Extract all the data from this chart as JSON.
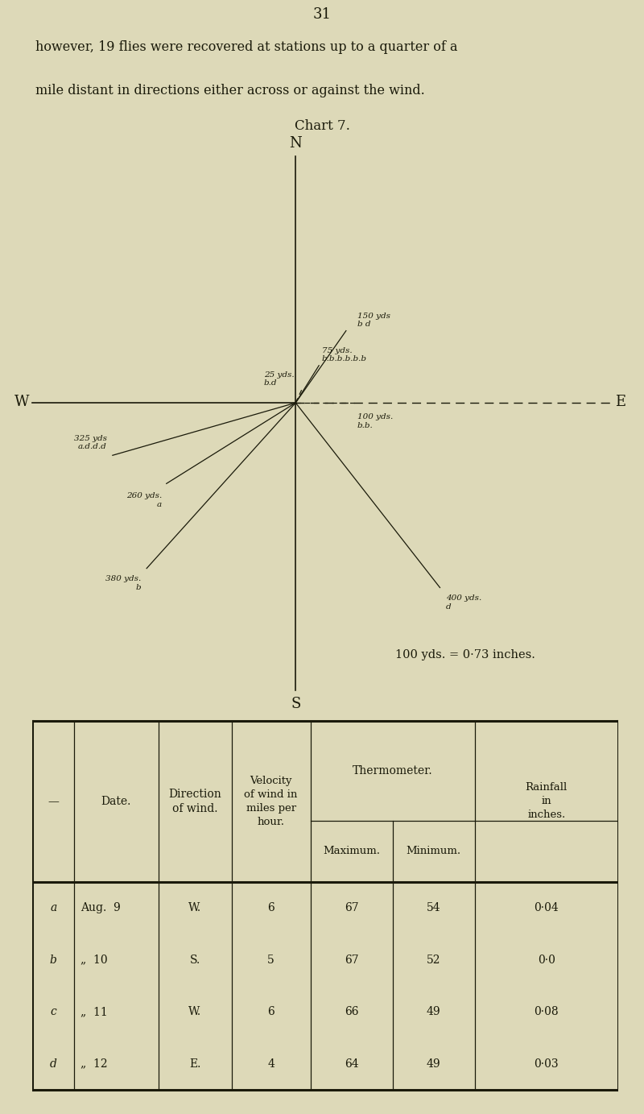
{
  "page_number": "31",
  "intro_text_line1": "however, 19 flies were recovered at stations up to a quarter of a",
  "intro_text_line2": "mile distant in directions either across or against the wind.",
  "chart_title": "Chart 7.",
  "scale_text": "100 yds. = 0·73 inches.",
  "bg_color": "#ddd9b8",
  "line_color": "#1a1a0a",
  "table_rows": [
    [
      "a",
      "Aug.  9",
      "W.",
      "6",
      "67",
      "54",
      "0·04"
    ],
    [
      "b",
      "„  10",
      "S.",
      "5",
      "67",
      "52",
      "0·0"
    ],
    [
      "c",
      "„  11",
      "W.",
      "6",
      "66",
      "49",
      "0·08"
    ],
    [
      "d",
      "„  12",
      "E.",
      "4",
      "64",
      "49",
      "0·03"
    ]
  ]
}
